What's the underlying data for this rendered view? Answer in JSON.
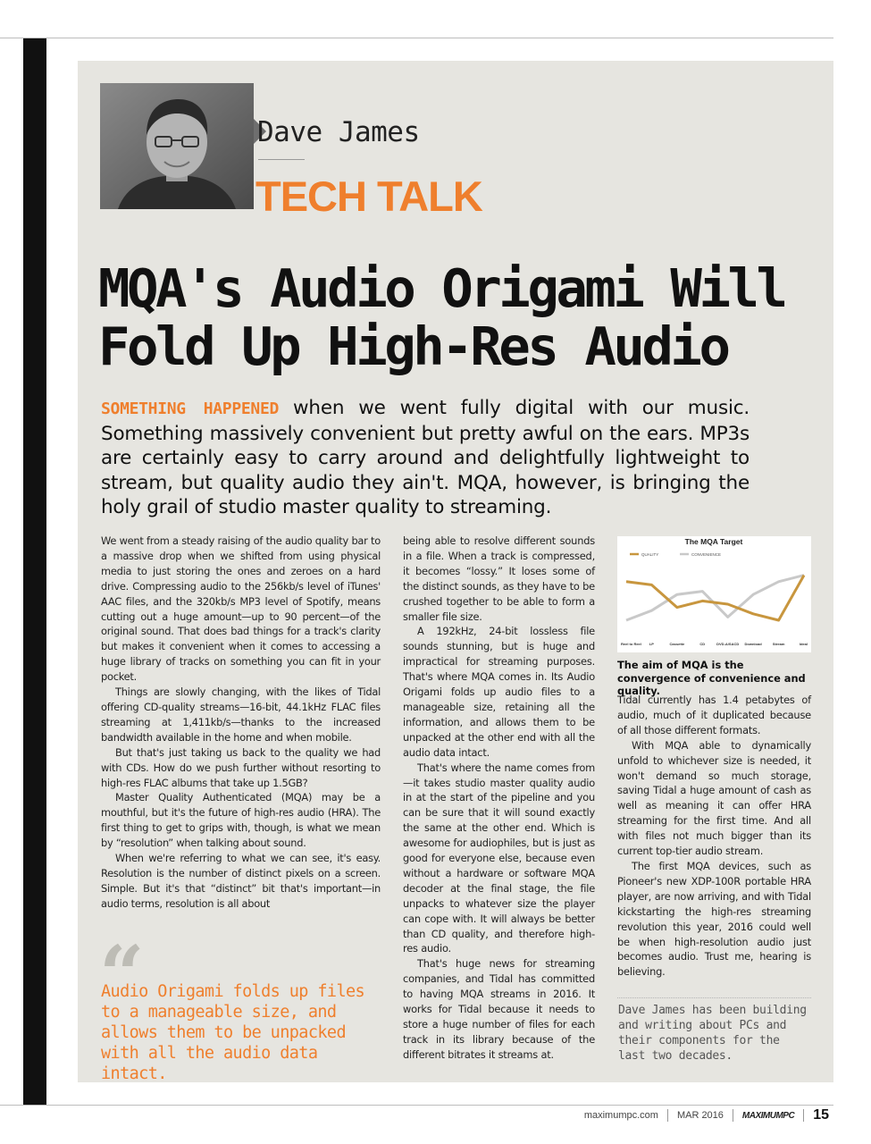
{
  "header": {
    "author_name": "Dave James",
    "column_name": "TECH TALK"
  },
  "article": {
    "headline": "MQA's Audio Origami Will Fold Up High-Res Audio",
    "standfirst_kicker": "SOMETHING HAPPENED",
    "standfirst_text": " when we went fully digital with our music. Something massively convenient but pretty awful on the ears. MP3s are certainly easy to carry around and delightfully lightweight to stream, but quality audio they ain't. MQA, however, is bringing the holy grail of studio master quality to streaming.",
    "col1": [
      "We went from a steady raising of the audio quality bar to a massive drop when we shifted from using physical media to just storing the ones and zeroes on a hard drive. Compressing audio to the 256kb/s level of iTunes' AAC files, and the 320kb/s MP3 level of Spotify, means cutting out a huge amount—up to 90 percent—of the original sound. That does bad things for a track's clarity but makes it convenient when it comes to accessing a huge library of tracks on something you can fit in your pocket.",
      "Things are slowly changing, with the likes of Tidal offering CD-quality streams—16-bit, 44.1kHz FLAC files streaming at 1,411kb/s—thanks to the increased bandwidth available in the home and when mobile.",
      "But that's just taking us back to the quality we had with CDs. How do we push further without resorting to high-res FLAC albums that take up 1.5GB?",
      "Master Quality Authenticated (MQA) may be a mouthful, but it's the future of high-res audio (HRA). The first thing to get to grips with, though, is what we mean by “resolution” when talking about sound.",
      "When we're referring to what we can see, it's easy. Resolution is the number of distinct pixels on a screen. Simple. But it's that “distinct” bit that's important—in audio terms, resolution is all about"
    ],
    "col2": [
      "being able to resolve different sounds in a file. When a track is compressed, it becomes “lossy.” It loses some of the distinct sounds, as they have to be crushed together to be able to form a smaller file size.",
      "A 192kHz, 24-bit lossless file sounds stunning, but is huge and impractical for streaming purposes. That's where MQA comes in. Its Audio Origami folds up audio files to a manageable size, retaining all the information, and allows them to be unpacked at the other end with all the audio data intact.",
      "That's where the name comes from—it takes studio master quality audio in at the start of the pipeline and you can be sure that it will sound exactly the same at the other end. Which is awesome for audiophiles, but is just as good for everyone else, because even without a hardware or software MQA decoder at the final stage, the file unpacks to whatever size the player can cope with. It will always be better than CD quality, and therefore high-res audio.",
      "That's huge news for streaming companies, and Tidal has committed to having MQA streams in 2016. It works for Tidal because it needs to store a huge number of files for each track in its library because of the different bitrates it streams at."
    ],
    "col3": [
      "Tidal currently has 1.4 petabytes of audio, much of it duplicated because of all those different formats.",
      "With MQA able to dynamically unfold to whichever size is needed, it won't demand so much storage, saving Tidal a huge amount of cash as well as meaning it can offer HRA streaming for the first time. And all with files not much bigger than its current top-tier audio stream.",
      "The first MQA devices, such as Pioneer's new XDP-100R portable HRA player, are now arriving, and with Tidal kickstarting the high-res streaming revolution this year, 2016 could well be when high-resolution audio just becomes audio. Trust me, hearing is believing."
    ],
    "quote_mark": "“",
    "pull_quote": "Audio Origami folds up files to a manageable size, and allows them to be unpacked with all the audio data intact.",
    "chart_caption": "The aim of MQA is the convergence of convenience and quality.",
    "bio": "Dave James has been building and writing about PCs and their components for the last two decades."
  },
  "chart_data": {
    "type": "line",
    "title": "The MQA Target",
    "categories": [
      "Reel to Reel",
      "LP",
      "Cassette",
      "CD",
      "DVD-A/SACD",
      "Download",
      "Stream",
      "Ideal"
    ],
    "series": [
      {
        "name": "QUALITY",
        "color": "#c8963e",
        "values": [
          8.5,
          8.0,
          4.5,
          5.5,
          5.0,
          3.5,
          2.5,
          9.5
        ]
      },
      {
        "name": "CONVENIENCE",
        "color": "#c9c9c9",
        "values": [
          2.5,
          4.0,
          6.5,
          7.0,
          3.0,
          6.5,
          8.5,
          9.5
        ]
      }
    ],
    "ylim": [
      0,
      10
    ],
    "legend": "top-left",
    "grid": false
  },
  "footer": {
    "site": "maximumpc.com",
    "issue": "MAR 2016",
    "brand": "MAXIMUMPC",
    "page": "15"
  }
}
